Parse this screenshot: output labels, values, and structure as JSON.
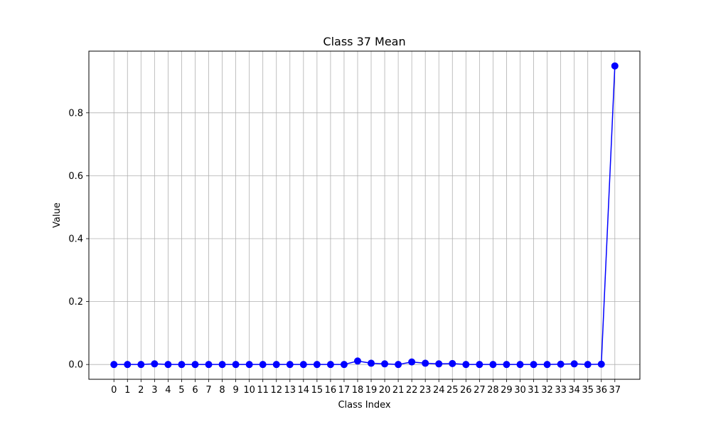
{
  "chart_data": {
    "type": "line",
    "title": "Class 37 Mean",
    "xlabel": "Class Index",
    "ylabel": "Value",
    "x": [
      0,
      1,
      2,
      3,
      4,
      5,
      6,
      7,
      8,
      9,
      10,
      11,
      12,
      13,
      14,
      15,
      16,
      17,
      18,
      19,
      20,
      21,
      22,
      23,
      24,
      25,
      26,
      27,
      28,
      29,
      30,
      31,
      32,
      33,
      34,
      35,
      36,
      37
    ],
    "x_tick_labels": [
      "0",
      "1",
      "2",
      "3",
      "4",
      "5",
      "6",
      "7",
      "8",
      "9",
      "10",
      "11",
      "12",
      "13",
      "14",
      "15",
      "16",
      "17",
      "18",
      "19",
      "20",
      "21",
      "22",
      "23",
      "24",
      "25",
      "26",
      "27",
      "28",
      "29",
      "30",
      "31",
      "32",
      "33",
      "34",
      "35",
      "36",
      "37"
    ],
    "series": [
      {
        "values": [
          0.0,
          0.0,
          0.0,
          0.002,
          0.0,
          0.0,
          0.0,
          0.0,
          0.0,
          0.0,
          0.0,
          0.0,
          0.0,
          0.0,
          0.0,
          0.0,
          0.0,
          0.0,
          0.011,
          0.004,
          0.002,
          0.0,
          0.008,
          0.004,
          0.002,
          0.003,
          0.0,
          0.0,
          0.0,
          0.0,
          0.0,
          0.0,
          0.0,
          0.001,
          0.002,
          0.0,
          0.001,
          0.949
        ],
        "color": "#0000ff",
        "marker": "circle"
      }
    ],
    "y_ticks": [
      0.0,
      0.2,
      0.4,
      0.6,
      0.8
    ],
    "y_tick_labels": [
      "0.0",
      "0.2",
      "0.4",
      "0.6",
      "0.8"
    ],
    "xlim": [
      -1.85,
      38.85
    ],
    "ylim": [
      -0.047,
      0.996
    ],
    "grid": true,
    "grid_color": "#b0b0b0",
    "axis_color": "#000000",
    "background": "#ffffff"
  }
}
